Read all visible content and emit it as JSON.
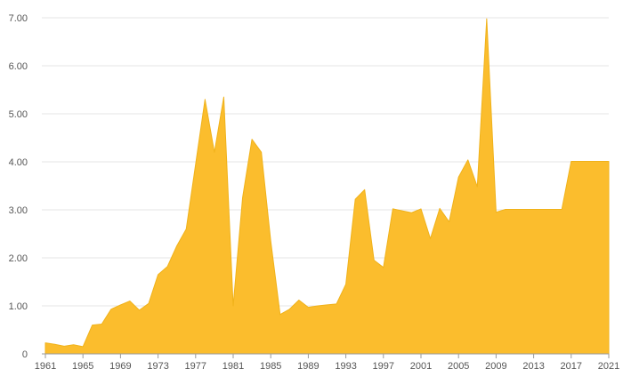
{
  "chart_data": {
    "type": "area",
    "title": "",
    "xlabel": "",
    "ylabel": "",
    "x": [
      1961,
      1962,
      1963,
      1964,
      1965,
      1966,
      1967,
      1968,
      1969,
      1970,
      1971,
      1972,
      1973,
      1974,
      1975,
      1976,
      1977,
      1978,
      1979,
      1980,
      1981,
      1982,
      1983,
      1984,
      1985,
      1986,
      1987,
      1988,
      1989,
      1990,
      1991,
      1992,
      1993,
      1994,
      1995,
      1996,
      1997,
      1998,
      1999,
      2000,
      2001,
      2002,
      2003,
      2004,
      2005,
      2006,
      2007,
      2008,
      2009,
      2010,
      2011,
      2012,
      2013,
      2014,
      2015,
      2016,
      2017,
      2018,
      2019,
      2020,
      2021
    ],
    "series": [
      {
        "values": [
          0.23,
          0.2,
          0.16,
          0.19,
          0.15,
          0.6,
          0.62,
          0.93,
          1.02,
          1.1,
          0.91,
          1.05,
          1.65,
          1.82,
          2.25,
          2.6,
          3.95,
          5.3,
          4.2,
          5.35,
          1.0,
          3.25,
          4.47,
          4.2,
          2.35,
          0.82,
          0.93,
          1.12,
          0.97,
          1.0,
          1.02,
          1.04,
          1.45,
          3.22,
          3.42,
          1.95,
          1.8,
          3.02,
          2.98,
          2.94,
          3.02,
          2.4,
          3.03,
          2.75,
          3.68,
          4.04,
          3.48,
          6.98,
          2.95,
          3.01,
          3.01,
          3.01,
          3.01,
          3.01,
          3.01,
          3.01,
          4.01,
          4.01,
          4.01,
          4.01,
          4.01
        ]
      }
    ],
    "xticks": [
      "1961",
      "1965",
      "1969",
      "1973",
      "1977",
      "1981",
      "1985",
      "1989",
      "1993",
      "1997",
      "2001",
      "2005",
      "2009",
      "2013",
      "2017",
      "2021"
    ],
    "yticks": [
      "0",
      "1.00",
      "2.00",
      "3.00",
      "4.00",
      "5.00",
      "6.00",
      "7.00"
    ],
    "ylim": [
      0,
      7
    ],
    "xlim": [
      1961,
      2021
    ],
    "grid": true,
    "legend": "none",
    "colors": {
      "fill": "#fbbd2d",
      "line": "#f0b21a",
      "grid": "#e6e6e6",
      "axis": "#9a9a9a",
      "text": "#555555"
    }
  }
}
